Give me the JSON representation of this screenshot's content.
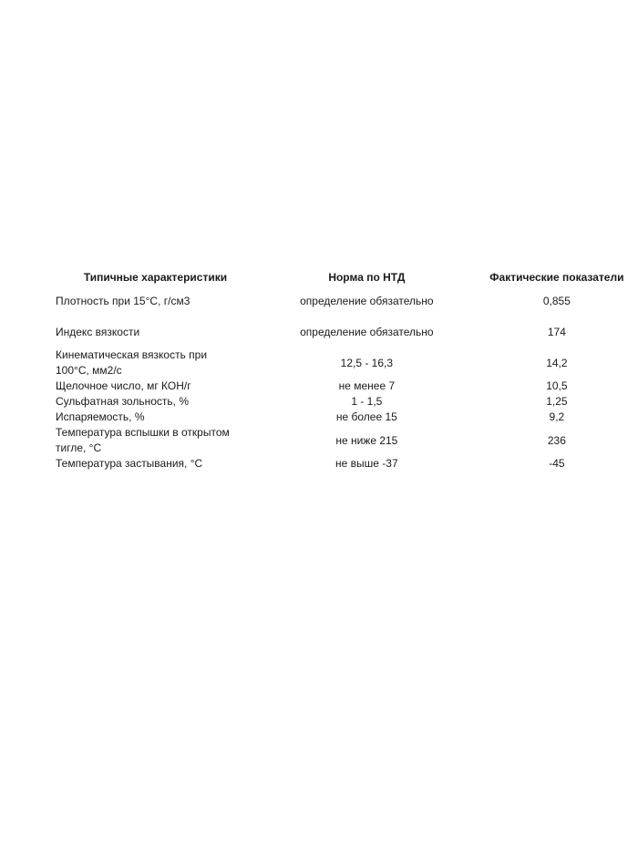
{
  "table": {
    "headers": [
      "Типичные характеристики",
      "Норма по НТД",
      "Фактические показатели"
    ],
    "rows": [
      {
        "name": "Плотность при 15°С, г/см3",
        "norm": "определение обязательно",
        "actual": "0,855"
      },
      {
        "name": "Индекс вязкости",
        "norm": "определение обязательно",
        "actual": "174"
      },
      {
        "name": "Кинематическая вязкость при 100°С, мм2/с",
        "norm": "12,5 - 16,3",
        "actual": "14,2"
      },
      {
        "name": "Щелочное число, мг КОН/г",
        "norm": "не менее 7",
        "actual": "10,5"
      },
      {
        "name": "Сульфатная зольность, %",
        "norm": "1 - 1,5",
        "actual": "1,25"
      },
      {
        "name": "Испаряемость, %",
        "norm": "не более 15",
        "actual": "9,2"
      },
      {
        "name": "Температура вспышки в открытом тигле, °С",
        "norm": "не ниже 215",
        "actual": "236"
      },
      {
        "name": "Температура застывания, °С",
        "norm": "не выше -37",
        "actual": "-45"
      }
    ]
  }
}
